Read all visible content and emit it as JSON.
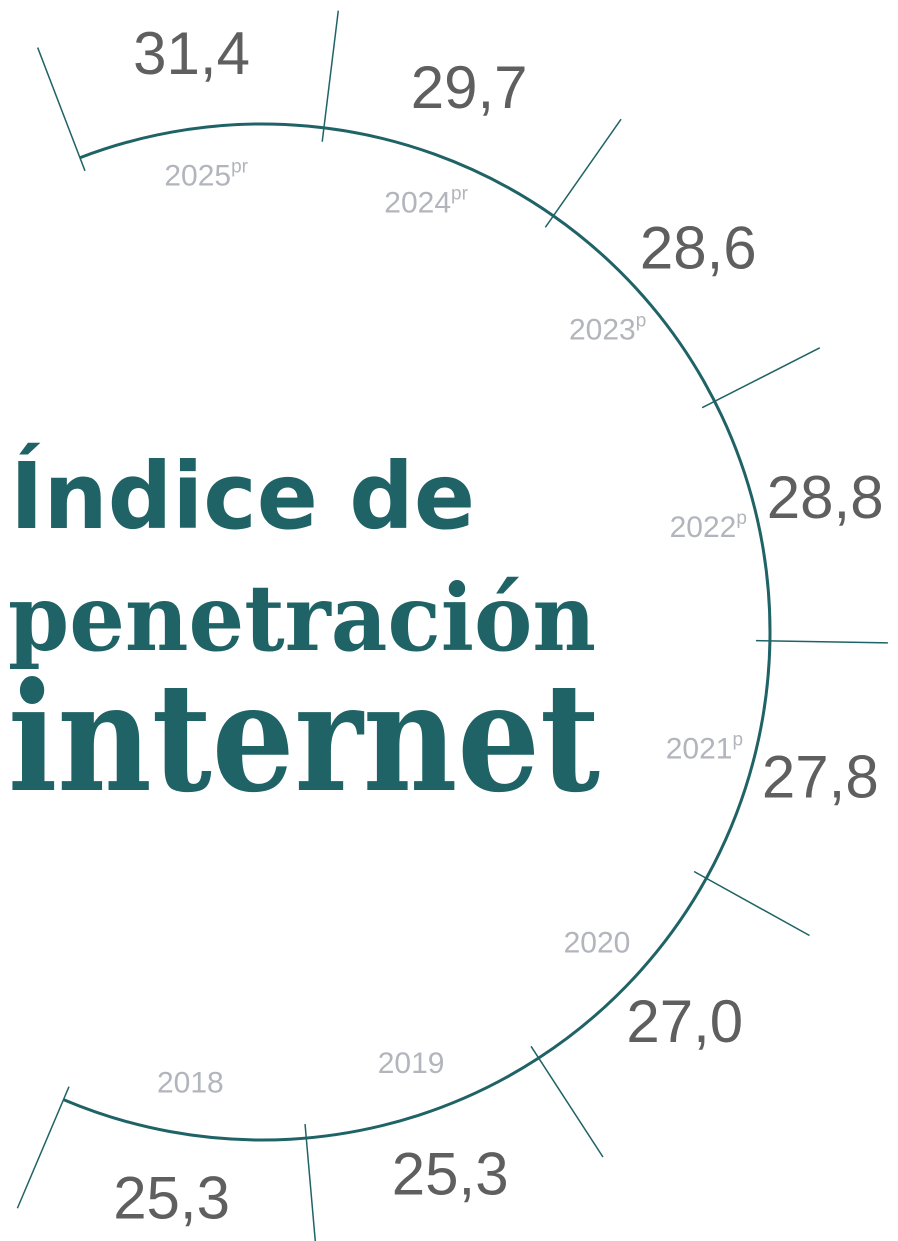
{
  "title": [
    "Índice de",
    "penetración",
    "internet"
  ],
  "items": [
    {
      "year": "2018",
      "value": "25,3"
    },
    {
      "year": "2019",
      "value": "25,3"
    },
    {
      "year": "2020",
      "value": "27,0"
    },
    {
      "year": "2021",
      "note": "p",
      "value": "27,8"
    },
    {
      "year": "2022",
      "note": "p",
      "value": "28,8"
    },
    {
      "year": "2023",
      "note": "p",
      "value": "28,6"
    },
    {
      "year": "2024",
      "note": "pr",
      "value": "29,7"
    },
    {
      "year": "2025",
      "note": "pr",
      "value": "31,4"
    }
  ]
}
